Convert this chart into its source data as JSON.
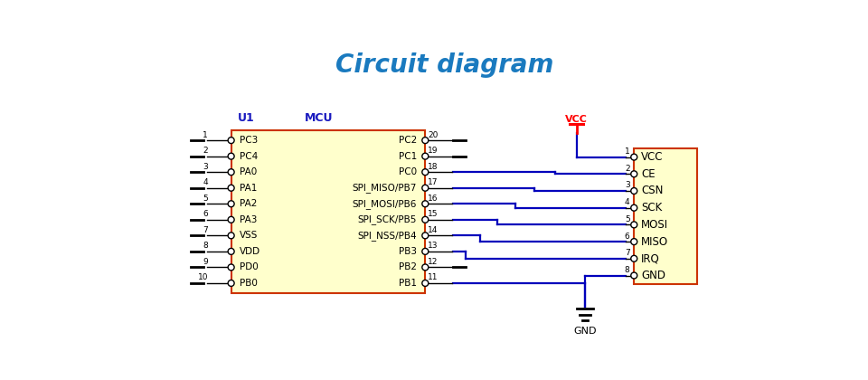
{
  "title": "Circuit diagram",
  "title_color": "#1a7abf",
  "title_fontsize": 20,
  "bg_color": "#ffffff",
  "wire_color": "#0000bb",
  "pin_color": "#000000",
  "header_color": "#1a1abf",
  "red_color": "#cc0000",
  "mcu_fill": "#ffffcc",
  "mcu_edge": "#cc3300",
  "rf_fill": "#ffffcc",
  "rf_edge": "#cc3300",
  "left_pins": [
    {
      "num": 1,
      "label": "PC3"
    },
    {
      "num": 2,
      "label": "PC4"
    },
    {
      "num": 3,
      "label": "PA0"
    },
    {
      "num": 4,
      "label": "PA1"
    },
    {
      "num": 5,
      "label": "PA2"
    },
    {
      "num": 6,
      "label": "PA3"
    },
    {
      "num": 7,
      "label": "VSS"
    },
    {
      "num": 8,
      "label": "VDD"
    },
    {
      "num": 9,
      "label": "PD0"
    },
    {
      "num": 10,
      "label": "PB0"
    }
  ],
  "right_pins": [
    {
      "num": 20,
      "label": "PC2"
    },
    {
      "num": 19,
      "label": "PC1"
    },
    {
      "num": 18,
      "label": "PC0"
    },
    {
      "num": 17,
      "label": "SPI_MISO/PB7"
    },
    {
      "num": 16,
      "label": "SPI_MOSI/PB6"
    },
    {
      "num": 15,
      "label": "SPI_SCK/PB5"
    },
    {
      "num": 14,
      "label": "SPI_NSS/PB4"
    },
    {
      "num": 13,
      "label": "PB3"
    },
    {
      "num": 12,
      "label": "PB2"
    },
    {
      "num": 11,
      "label": "PB1"
    }
  ],
  "rf_pins": [
    {
      "num": 1,
      "label": "VCC"
    },
    {
      "num": 2,
      "label": "CE"
    },
    {
      "num": 3,
      "label": "CSN"
    },
    {
      "num": 4,
      "label": "SCK"
    },
    {
      "num": 5,
      "label": "MOSI"
    },
    {
      "num": 6,
      "label": "MISO"
    },
    {
      "num": 7,
      "label": "IRQ"
    },
    {
      "num": 8,
      "label": "GND"
    }
  ]
}
